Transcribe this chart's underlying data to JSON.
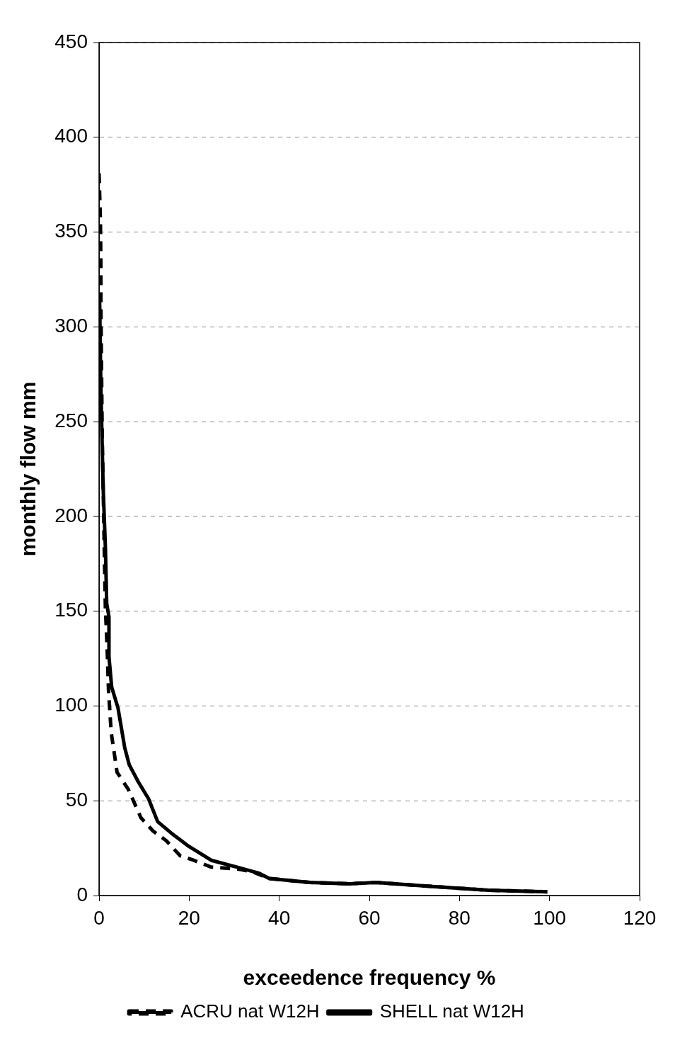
{
  "chart_data": {
    "type": "line",
    "xlabel": "exceedence frequency %",
    "ylabel": "monthly flow mm",
    "xlim": [
      0,
      120
    ],
    "xticks": [
      0,
      20,
      40,
      60,
      80,
      100,
      120
    ],
    "ylim": [
      0,
      450
    ],
    "yticks": [
      0,
      50,
      100,
      150,
      200,
      250,
      300,
      350,
      400,
      450
    ],
    "grid": "y",
    "legend": "bottom",
    "marker": "none",
    "series": [
      {
        "name": "ACRU nat W12H",
        "color": "#000000",
        "line_style": "dashed",
        "x": [
          0,
          0.3,
          0.4,
          0.4,
          0.5,
          0.7,
          1.2,
          1.4,
          1.8,
          2.1,
          2.7,
          4,
          6.5,
          9.3,
          12,
          14.9,
          18,
          21,
          24.9,
          27.9,
          30.8,
          34.2,
          37.8,
          46.8,
          55.7,
          61.4,
          74,
          86.5,
          99.5
        ],
        "values": [
          381,
          356,
          333,
          311,
          289,
          243,
          177,
          152,
          130,
          108,
          86,
          65,
          56,
          41,
          34,
          29,
          21,
          18.6,
          15,
          14.5,
          14,
          12.4,
          9,
          6.9,
          6.2,
          6.9,
          4.8,
          2.8,
          2
        ]
      },
      {
        "name": "SHELL nat W12H",
        "color": "#000000",
        "line_style": "solid",
        "x": [
          0.1,
          0.4,
          0.9,
          1.4,
          1.7,
          2.2,
          2.2,
          2.8,
          4.2,
          5.7,
          6.7,
          8.7,
          11,
          13,
          16,
          19.9,
          24.9,
          30.6,
          35.6,
          37.8,
          46.8,
          55.7,
          61.4,
          74,
          86.5,
          99.5
        ],
        "values": [
          318,
          268,
          216,
          184,
          154,
          147,
          126,
          110,
          99,
          78,
          69,
          60,
          51,
          39,
          33,
          26,
          18.6,
          15,
          11.7,
          9,
          6.9,
          6.2,
          6.9,
          4.8,
          2.8,
          2
        ]
      }
    ]
  }
}
